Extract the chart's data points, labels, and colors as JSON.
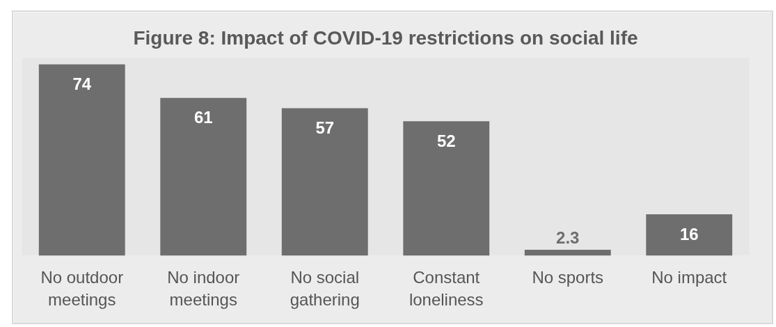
{
  "chart_data": {
    "type": "bar",
    "title": "Figure 8: Impact of COVID-19 restrictions on social life",
    "categories": [
      "No outdoor meetings",
      "No indoor meetings",
      "No social gathering",
      "Constant loneliness",
      "No sports",
      "No impact"
    ],
    "values": [
      74,
      61,
      57,
      52,
      2.3,
      16
    ],
    "color": "#6e6e6e",
    "data_labels": true,
    "tick_labels": "x"
  }
}
